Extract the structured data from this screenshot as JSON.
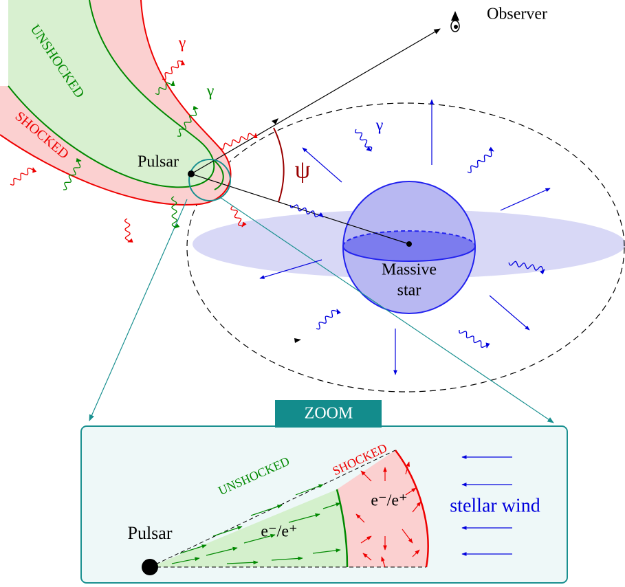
{
  "observer": "Observer",
  "bow_shock": {
    "unshocked": "UNSHOCKED",
    "shocked": "SHOCKED"
  },
  "gamma_labels": [
    "γ",
    "γ",
    "γ"
  ],
  "pulsar": "Pulsar",
  "angle": "ψ",
  "star": [
    "Massive",
    "star"
  ],
  "zoom": {
    "title": "ZOOM",
    "unshocked": "UNSHOCKED",
    "shocked": "SHOCKED",
    "particles": [
      "e⁻/e⁺",
      "e⁻/e⁺"
    ],
    "pulsar": "Pulsar",
    "wind": "stellar wind"
  }
}
